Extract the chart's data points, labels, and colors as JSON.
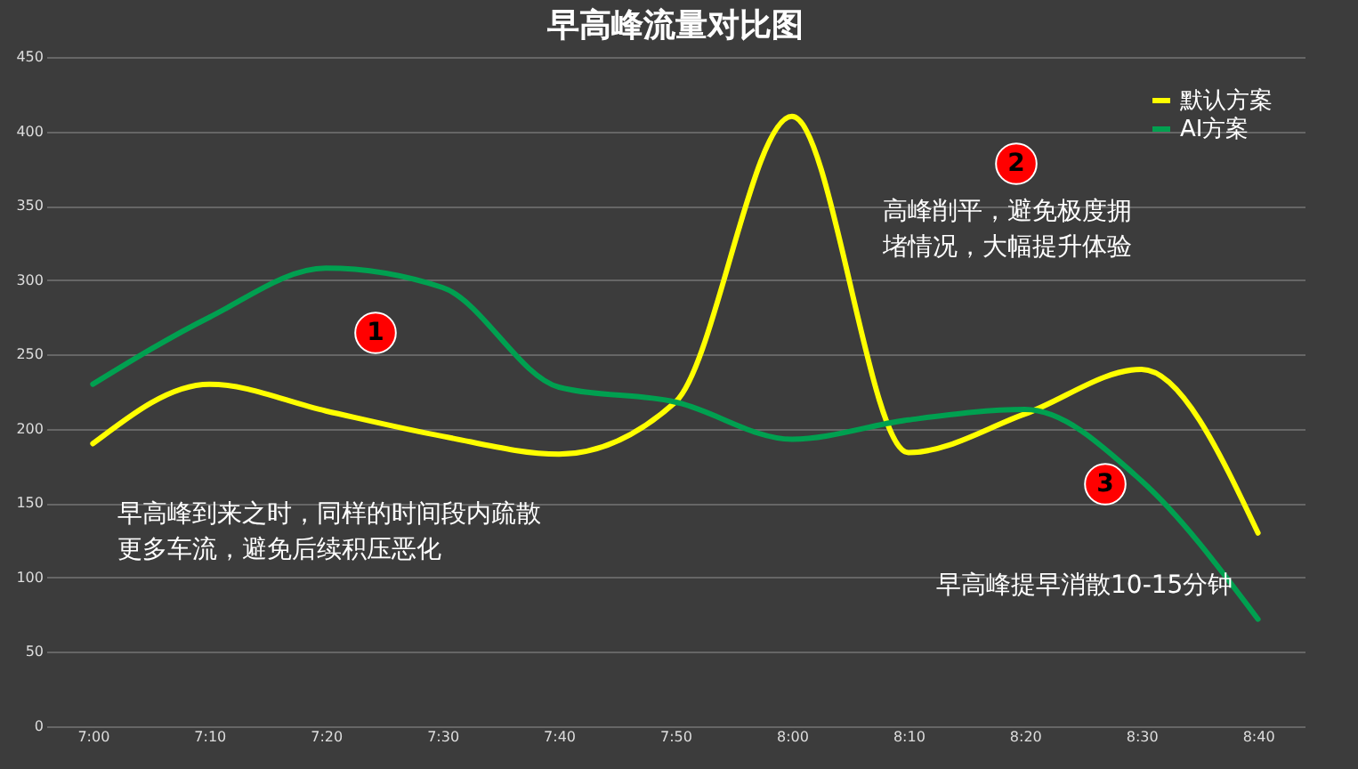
{
  "chart_data": {
    "type": "line",
    "title": "早高峰流量对比图",
    "categories": [
      "7:00",
      "7:10",
      "7:20",
      "7:30",
      "7:40",
      "7:50",
      "8:00",
      "8:10",
      "8:20",
      "8:30",
      "8:40"
    ],
    "series": [
      {
        "name": "默认方案",
        "color": "#ffff00",
        "values": [
          190,
          230,
          212,
          195,
          183,
          218,
          410,
          184,
          210,
          240,
          130
        ]
      },
      {
        "name": "AI方案",
        "color": "#00a050",
        "values": [
          230,
          275,
          308,
          295,
          228,
          218,
          193,
          206,
          213,
          165,
          72
        ]
      }
    ],
    "ylim": [
      0,
      450
    ],
    "yticks": [
      0,
      50,
      100,
      150,
      200,
      250,
      300,
      350,
      400,
      450
    ],
    "grid": "y",
    "legend": "top right",
    "line_style": "solid",
    "marker": "none",
    "annotations": [
      "1",
      "早高峰到来之时，同样的时间段内疏散更多车流，避免后续积压恶化",
      "2",
      "高峰削平，避免极度拥堵情况，大幅提升体验",
      "3",
      "早高峰提早消散10-15分钟"
    ]
  }
}
